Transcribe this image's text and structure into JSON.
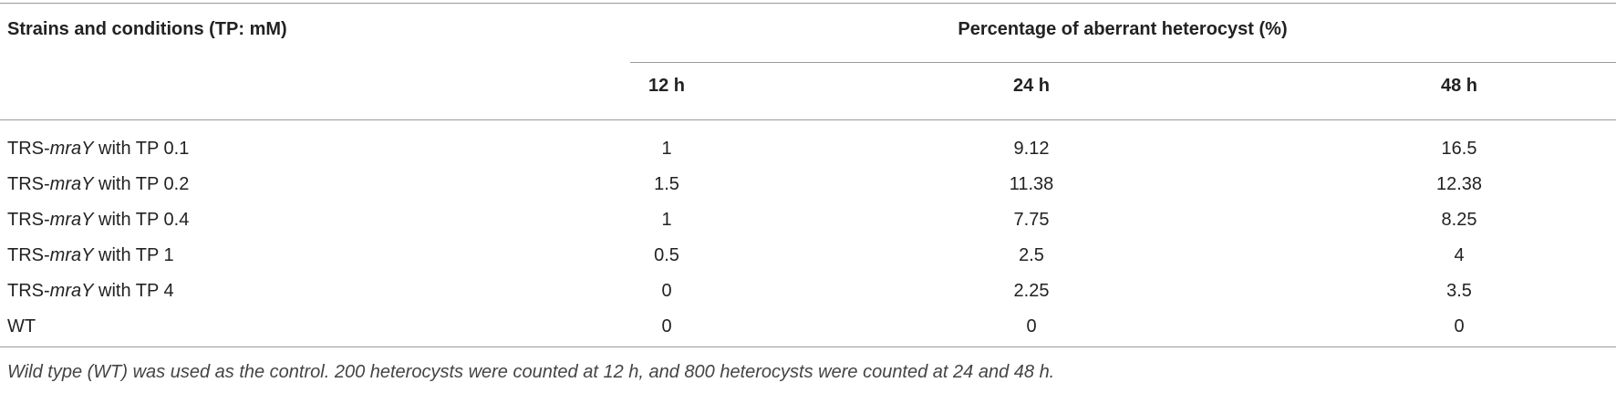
{
  "table": {
    "header": {
      "strain_col": "Strains and conditions (TP: mM)",
      "group_label": "Percentage of aberrant heterocyst (%)",
      "time_cols": [
        "12 h",
        "24 h",
        "48 h"
      ]
    },
    "rows": [
      {
        "prefix": "TRS-",
        "gene": "mraY",
        "suffix": " with TP 0.1",
        "values": [
          "1",
          "9.12",
          "16.5"
        ]
      },
      {
        "prefix": "TRS-",
        "gene": "mraY",
        "suffix": " with TP 0.2",
        "values": [
          "1.5",
          "11.38",
          "12.38"
        ]
      },
      {
        "prefix": "TRS-",
        "gene": "mraY",
        "suffix": " with TP 0.4",
        "values": [
          "1",
          "7.75",
          "8.25"
        ]
      },
      {
        "prefix": "TRS-",
        "gene": "mraY",
        "suffix": " with TP 1",
        "values": [
          "0.5",
          "2.5",
          "4"
        ]
      },
      {
        "prefix": "TRS-",
        "gene": "mraY",
        "suffix": " with TP 4",
        "values": [
          "0",
          "2.25",
          "3.5"
        ]
      },
      {
        "prefix": "WT",
        "gene": "",
        "suffix": "",
        "values": [
          "0",
          "0",
          "0"
        ]
      }
    ],
    "footnote": "Wild type (WT) was used as the control. 200 heterocysts were counted at 12 h, and 800 heterocysts were counted at 24 and 48 h."
  }
}
